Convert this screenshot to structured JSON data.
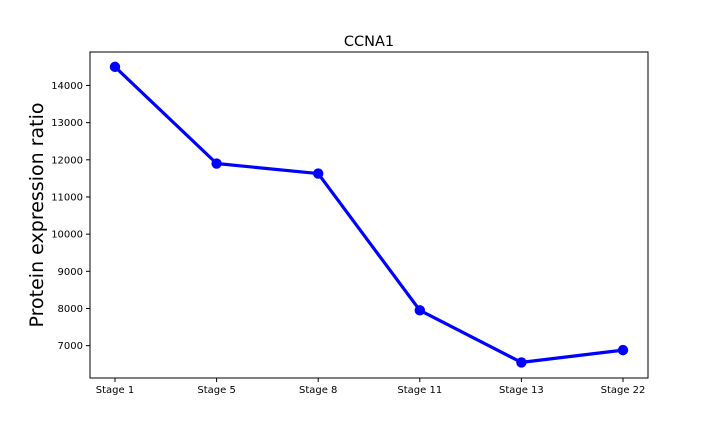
{
  "chart_data": {
    "type": "line",
    "title": "CCNA1",
    "xlabel": "",
    "ylabel": "Protein expression ratio",
    "categories": [
      "Stage 1",
      "Stage 5",
      "Stage 8",
      "Stage 11",
      "Stage 13",
      "Stage 22"
    ],
    "series": [
      {
        "values": [
          14500,
          11900,
          11630,
          7950,
          6550,
          6880
        ],
        "color": "#0000ff",
        "marker": "circle"
      }
    ],
    "ylim": [
      6130,
      14900
    ],
    "yticks": [
      7000,
      8000,
      9000,
      10000,
      11000,
      12000,
      13000,
      14000
    ],
    "grid": false,
    "legend": "none"
  }
}
